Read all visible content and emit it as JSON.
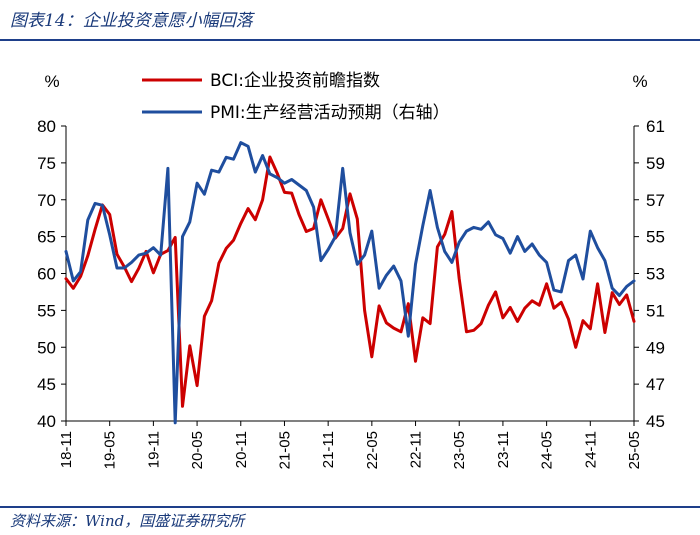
{
  "figure": {
    "title": "图表14：企业投资意愿小幅回落",
    "source": "资料来源：Wind，国盛证券研究所"
  },
  "chart_data": {
    "type": "line",
    "left_unit": "%",
    "right_unit": "%",
    "y_left": {
      "min": 40,
      "max": 80,
      "ticks": [
        40,
        45,
        50,
        55,
        60,
        65,
        70,
        75,
        80
      ]
    },
    "y_right": {
      "min": 45,
      "max": 61,
      "ticks": [
        45,
        47,
        49,
        51,
        53,
        55,
        57,
        59,
        61
      ]
    },
    "x_ticks": [
      "18-11",
      "19-05",
      "19-11",
      "20-05",
      "20-11",
      "21-05",
      "21-11",
      "22-05",
      "22-11",
      "23-05",
      "23-11",
      "24-05",
      "24-11",
      "25-05"
    ],
    "legend_position": "top-left",
    "series": [
      {
        "name": "BCI:企业投资前瞻指数",
        "axis": "left",
        "color": "#cc0000",
        "start": "2018-11",
        "values": [
          59.3,
          58.0,
          59.6,
          62.4,
          66.0,
          69.3,
          68.0,
          62.6,
          60.9,
          58.9,
          60.7,
          63.0,
          60.1,
          62.6,
          63.1,
          64.9,
          42.0,
          50.2,
          44.8,
          54.2,
          56.3,
          61.4,
          63.4,
          64.5,
          66.8,
          68.8,
          67.3,
          70.0,
          75.8,
          73.6,
          71.0,
          70.9,
          68.0,
          65.7,
          66.1,
          70.0,
          67.4,
          64.8,
          66.1,
          70.8,
          67.4,
          55.0,
          48.7,
          55.6,
          53.3,
          52.6,
          52.1,
          55.9,
          48.1,
          54.0,
          53.2,
          63.6,
          65.3,
          68.4,
          59.3,
          52.1,
          52.3,
          53.2,
          55.7,
          57.5,
          54.0,
          55.4,
          53.5,
          55.3,
          56.3,
          55.7,
          58.6,
          55.3,
          56.1,
          53.8,
          50.0,
          53.6,
          52.5,
          58.6,
          52.0,
          57.4,
          55.8,
          57.1,
          53.5
        ]
      },
      {
        "name": "PMI:生产经营活动预期（右轴）",
        "axis": "right",
        "color": "#1f4e9e",
        "start": "2018-11",
        "values": [
          54.2,
          52.6,
          53.1,
          55.9,
          56.8,
          56.7,
          55.1,
          53.3,
          53.3,
          53.6,
          54.0,
          54.1,
          54.4,
          54.0,
          58.7,
          44.9,
          55.0,
          55.8,
          57.9,
          57.3,
          58.6,
          58.5,
          59.3,
          59.2,
          60.1,
          59.9,
          58.5,
          59.4,
          58.4,
          58.2,
          57.9,
          58.1,
          57.8,
          57.5,
          56.6,
          53.7,
          54.3,
          55.0,
          58.7,
          55.2,
          53.5,
          54.0,
          55.3,
          52.2,
          52.9,
          53.4,
          52.6,
          49.6,
          53.5,
          55.6,
          57.5,
          55.5,
          54.2,
          53.6,
          54.7,
          55.3,
          55.5,
          55.4,
          55.8,
          55.1,
          54.9,
          54.1,
          55.0,
          54.2,
          54.6,
          54.0,
          53.6,
          52.1,
          52.0,
          53.7,
          54.0,
          52.7,
          55.3,
          54.4,
          53.7,
          52.2,
          51.8,
          52.3,
          52.6
        ]
      }
    ]
  }
}
